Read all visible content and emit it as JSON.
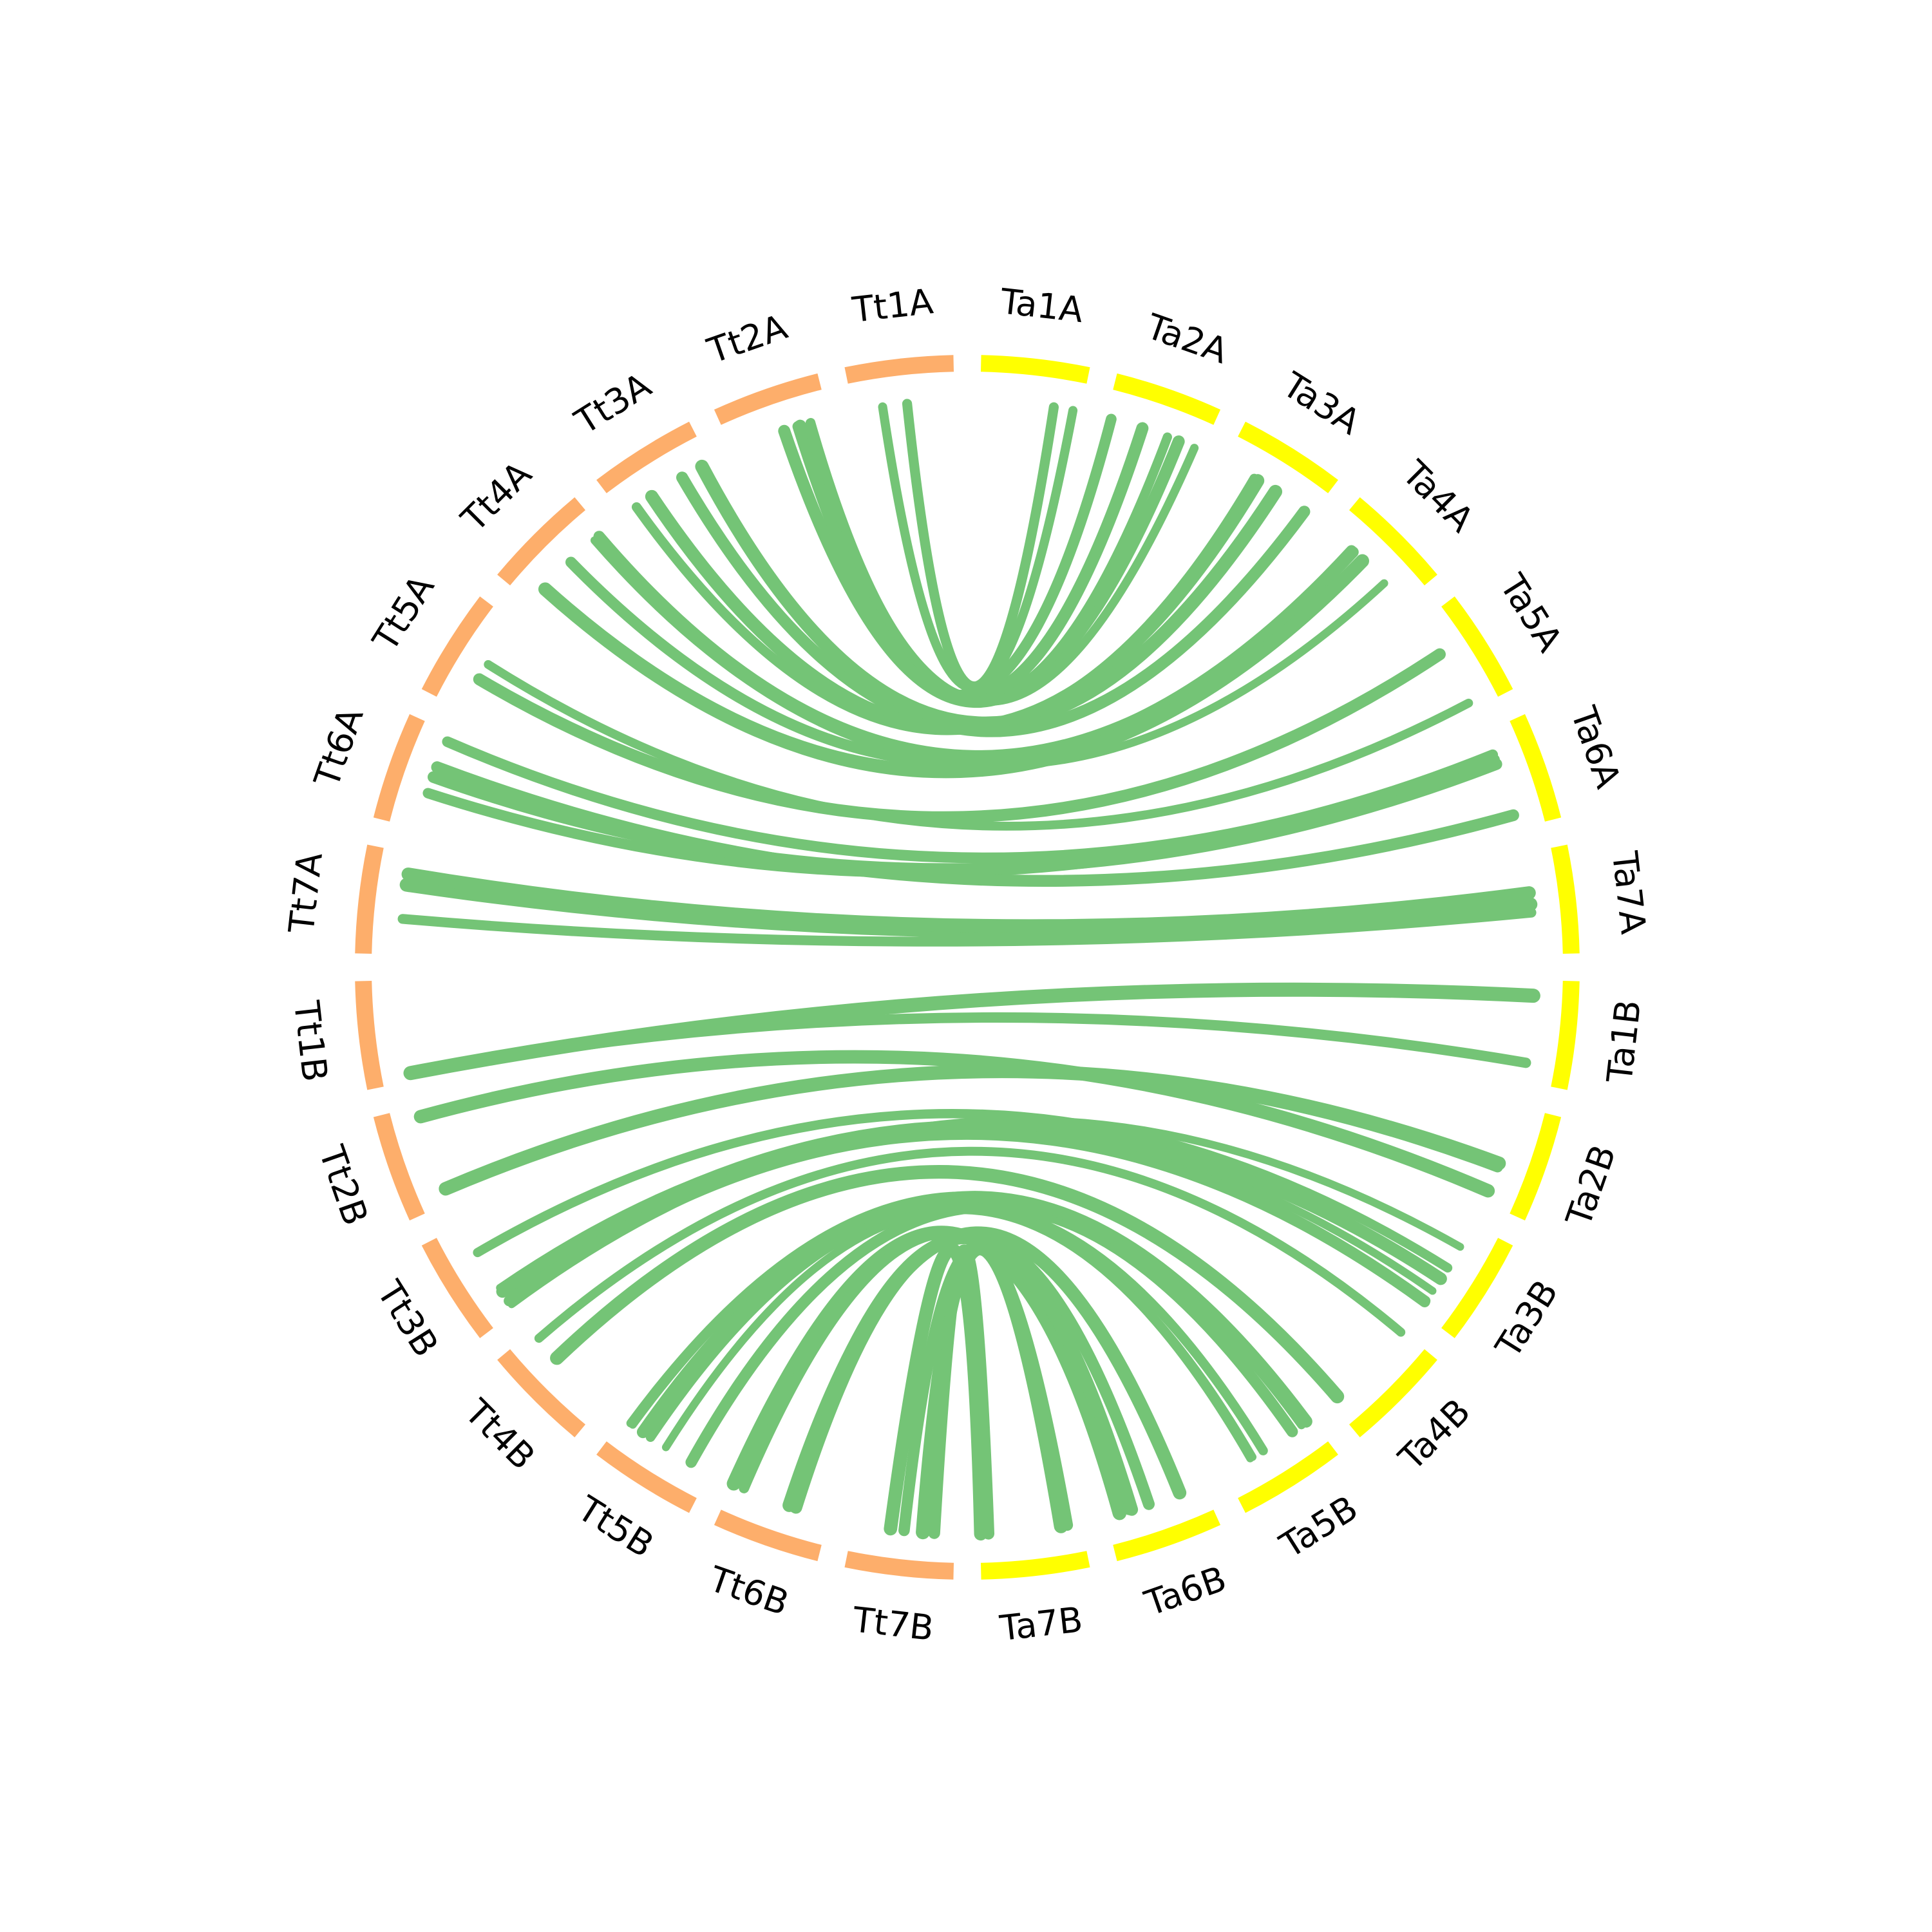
{
  "segments": [
    {
      "label": "Ta1A",
      "color": "#ffff00"
    },
    {
      "label": "Ta2A",
      "color": "#ffff00"
    },
    {
      "label": "Ta3A",
      "color": "#ffff00"
    },
    {
      "label": "Ta4A",
      "color": "#ffff00"
    },
    {
      "label": "Ta5A",
      "color": "#ffff00"
    },
    {
      "label": "Ta6A",
      "color": "#ffff00"
    },
    {
      "label": "Ta7A",
      "color": "#ffff00"
    },
    {
      "label": "Ta1B",
      "color": "#ffff00"
    },
    {
      "label": "Ta2B",
      "color": "#ffff00"
    },
    {
      "label": "Ta3B",
      "color": "#ffff00"
    },
    {
      "label": "Ta4B",
      "color": "#ffff00"
    },
    {
      "label": "Ta5B",
      "color": "#ffff00"
    },
    {
      "label": "Ta6B",
      "color": "#ffff00"
    },
    {
      "label": "Ta7B",
      "color": "#ffff00"
    },
    {
      "label": "Tt7B",
      "color": "#fdae6b"
    },
    {
      "label": "Tt6B",
      "color": "#fdae6b"
    },
    {
      "label": "Tt5B",
      "color": "#fdae6b"
    },
    {
      "label": "Tt4B",
      "color": "#fdae6b"
    },
    {
      "label": "Tt3B",
      "color": "#fdae6b"
    },
    {
      "label": "Tt2B",
      "color": "#fdae6b"
    },
    {
      "label": "Tt1B",
      "color": "#fdae6b"
    },
    {
      "label": "Tt7A",
      "color": "#fdae6b"
    },
    {
      "label": "Tt6A",
      "color": "#fdae6b"
    },
    {
      "label": "Tt5A",
      "color": "#fdae6b"
    },
    {
      "label": "Tt4A",
      "color": "#fdae6b"
    },
    {
      "label": "Tt3A",
      "color": "#fdae6b"
    },
    {
      "label": "Tt2A",
      "color": "#fdae6b"
    },
    {
      "label": "Tt1A",
      "color": "#fdae6b"
    }
  ],
  "link_color": "#74c476"
}
